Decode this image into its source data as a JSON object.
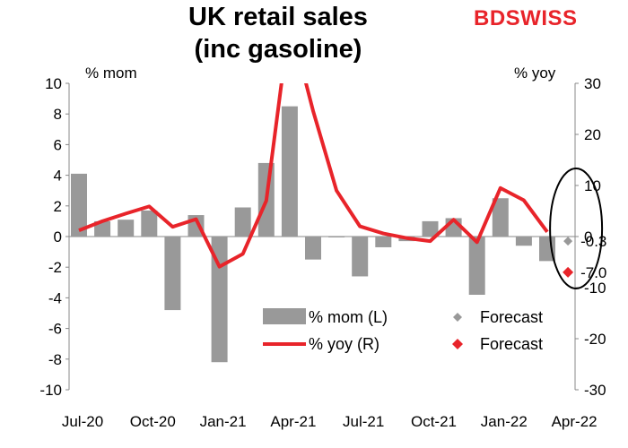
{
  "header": {
    "title_line1": "UK retail sales",
    "title_line2": "(inc gasoline)",
    "brand_prefix": "BD",
    "brand_suffix": "SWISS"
  },
  "chart_data": {
    "type": "bar",
    "title": "UK retail sales (inc gasoline)",
    "left_axis_label": "% mom",
    "right_axis_label": "% yoy",
    "left_ylim": [
      -10,
      10
    ],
    "left_ticks": [
      10,
      8,
      6,
      4,
      2,
      0,
      -2,
      -4,
      -6,
      -8,
      -10
    ],
    "right_ylim": [
      -30,
      30
    ],
    "right_ticks": [
      30,
      20,
      10,
      0,
      -10,
      -20,
      -30
    ],
    "x_tick_labels": [
      "Jul-20",
      "Oct-20",
      "Jan-21",
      "Apr-21",
      "Jul-21",
      "Oct-21",
      "Jan-22",
      "Apr-22"
    ],
    "categories": [
      "Jul-20",
      "Aug-20",
      "Sep-20",
      "Oct-20",
      "Nov-20",
      "Dec-20",
      "Jan-21",
      "Feb-21",
      "Mar-21",
      "Apr-21",
      "May-21",
      "Jun-21",
      "Jul-21",
      "Aug-21",
      "Sep-21",
      "Oct-21",
      "Nov-21",
      "Dec-21",
      "Jan-22",
      "Feb-22",
      "Mar-22",
      "Apr-22"
    ],
    "series": [
      {
        "name": "% mom (L)",
        "type": "bar",
        "axis": "left",
        "color": "#999999",
        "values": [
          4.1,
          1.0,
          1.1,
          1.7,
          -4.8,
          1.4,
          -8.2,
          1.9,
          4.8,
          8.5,
          -1.5,
          0.0,
          -2.6,
          -0.7,
          -0.3,
          1.0,
          1.2,
          -3.8,
          2.5,
          -0.6,
          -1.6,
          null
        ]
      },
      {
        "name": "% yoy (R)",
        "type": "line",
        "axis": "right",
        "color": "#e8242a",
        "values": [
          1.2,
          3.0,
          4.5,
          5.9,
          1.9,
          3.4,
          -5.9,
          -3.4,
          7.0,
          42.4,
          24.6,
          9.0,
          2.0,
          0.6,
          -0.3,
          -0.9,
          3.3,
          -1.1,
          9.5,
          7.1,
          0.9,
          null
        ]
      },
      {
        "name": "Forecast",
        "type": "point",
        "axis": "left",
        "color": "#999999",
        "category": "Apr-22",
        "value": -0.3,
        "label": "-0.3"
      },
      {
        "name": "Forecast",
        "type": "point",
        "axis": "right",
        "color": "#e8242a",
        "category": "Apr-22",
        "value": -7.0,
        "label": "-7.0"
      }
    ],
    "legend": {
      "placement": "bottom-center",
      "items": [
        {
          "label": "% mom (L)",
          "symbol": "bar",
          "color": "#999999"
        },
        {
          "label": "Forecast",
          "symbol": "diamond",
          "color": "#999999"
        },
        {
          "label": "% yoy (R)",
          "symbol": "line",
          "color": "#e8242a"
        },
        {
          "label": "Forecast",
          "symbol": "diamond",
          "color": "#e8242a"
        }
      ]
    },
    "annotation": {
      "shape": "ellipse",
      "color": "#000000",
      "target": "Apr-22 forecasts"
    }
  }
}
